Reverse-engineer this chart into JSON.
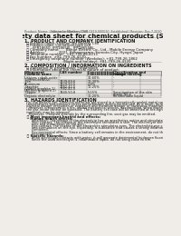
{
  "bg_color": "#f0ede8",
  "header1": "Product Name: Lithium Ion Battery Cell",
  "header2": "Substance Number: 1990-0419-000010",
  "header3": "Established / Revision: Dec.7.2010",
  "title": "Safety data sheet for chemical products (SDS)",
  "s1_title": "1. PRODUCT AND COMPANY IDENTIFICATION",
  "s1_items": [
    "  ・ Product name: Lithium Ion Battery Cell",
    "  ・ Product code: Cylindrical-type cell",
    "       (IFR18650, IFR18650L, IFR18650A)",
    "  ・ Company name:      Bange Electric Co., Ltd., Mobile Energy Company",
    "  ・ Address:            2021  Kannonyama, Sumoto-City, Hyogo, Japan",
    "  ・ Telephone number:  +81-799-26-4111",
    "  ・ Fax number:  +81-799-26-4120",
    "  ・ Emergency telephone number (Weekday): +81-799-26-1862",
    "                                  (Night and holiday): +81-799-26-4120"
  ],
  "s2_title": "2. COMPOSITION / INFORMATION ON INGREDIENTS",
  "s2_a": "  ・ Substance or preparation: Preparation",
  "s2_b": "  ・ Information about the chemical nature of product:",
  "th1": "Component",
  "th1b": "Common name",
  "th2": "CAS number",
  "th3a": "Concentration /",
  "th3b": "Concentration range",
  "th4a": "Classification and",
  "th4b": "hazard labeling",
  "rows": [
    [
      "Lithium cobalt oxide",
      "(LiMnxCoxNiO2)",
      "",
      "-",
      "30-60%",
      "-"
    ],
    [
      "Iron",
      "",
      "",
      "7439-89-6",
      "10-30%",
      "-"
    ],
    [
      "Aluminum",
      "",
      "",
      "7429-90-5",
      "2-8%",
      "-"
    ],
    [
      "Graphite",
      "(Gilded graphite-1)",
      "(All-film graphite-1)",
      "7782-42-5\n7782-42-5",
      "10-25%",
      "-"
    ],
    [
      "Copper",
      "",
      "",
      "7440-50-8",
      "5-15%",
      "Sensitization of the skin\ngroup No.2"
    ],
    [
      "Organic electrolyte",
      "",
      "",
      "-",
      "10-20%",
      "Inflammable liquid"
    ]
  ],
  "s3_title": "3. HAZARDS IDENTIFICATION",
  "s3_body": [
    "  For the battery cell, chemical materials are stored in a hermetically sealed metal case, designed to withstand",
    "  temperatures and pressure-stress perturbations during normal use. As a result, during normal use, there is no",
    "  physical danger of ignition or explosion and therefore danger of hazardous materials leakage.",
    "    However, if exposed to a fire, added mechanical shocks, decomposed, when electro whiz some other measures",
    "  the gas inside cannot be operated. The battery cell case will be breached at fire-fighting, hazardous",
    "  materials may be released.",
    "    Moreover, if heated strongly by the surrounding fire, soot gas may be emitted."
  ],
  "s3_sub1": "  ・ Most important hazard and effects:",
  "s3_human": "     Human health effects:",
  "s3_human_items": [
    "       Inhalation: The release of the electrolyte has an anesthetics action and stimulates in respiratory tract.",
    "       Skin contact: The release of the electrolyte stimulates a skin. The electrolyte skin contact causes a",
    "       sore and stimulation on the skin.",
    "       Eye contact: The release of the electrolyte stimulates eyes. The electrolyte eye contact causes a sore",
    "       and stimulation on the eye. Especially, a substance that causes a strong inflammation of the eye is",
    "       contained.",
    "       Environmental effects: Since a battery cell remains in the environment, do not throw out it into the",
    "       environment."
  ],
  "s3_sub2": "  ・ Specific hazards:",
  "s3_specific": [
    "       If the electrolyte contacts with water, it will generate detrimental hydrogen fluoride.",
    "       Since the used electrolyte is inflammable liquid, do not bring close to fire."
  ]
}
